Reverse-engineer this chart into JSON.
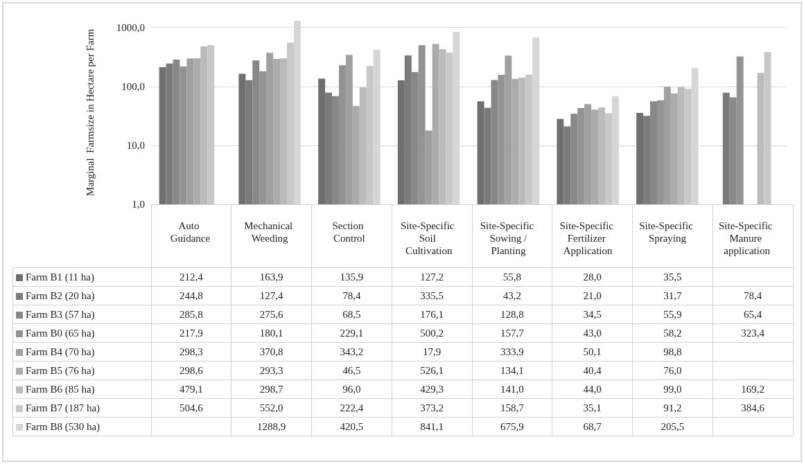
{
  "chart_data": {
    "type": "bar",
    "ylabel": "Marginal  Farmsize in Hectare per Farm",
    "categories": [
      "Auto Guidance",
      "Mechanical Weeding",
      "Section Control",
      "Site-Specific Soil Cultivation",
      "Site-Specific Sowing /Planting",
      "Site-Specific Fertilizer Application",
      "Site-Specific Spraying",
      "Site-Specific Manure application"
    ],
    "series": [
      {
        "name": "Farm B1 (11 ha)",
        "color": "#6f6f6f",
        "values": [
          212.4,
          163.9,
          135.9,
          127.2,
          55.8,
          28.0,
          35.5,
          null
        ],
        "value_labels": [
          "212,4",
          "163,9",
          "135,9",
          "127,2",
          "55,8",
          "28,0",
          "35,5",
          null
        ]
      },
      {
        "name": "Farm B2 (20 ha)",
        "color": "#7b7b7b",
        "values": [
          244.8,
          127.4,
          78.4,
          335.5,
          43.2,
          21.0,
          31.7,
          78.4
        ],
        "value_labels": [
          "244,8",
          "127,4",
          "78,4",
          "335,5",
          "43,2",
          "21,0",
          "31,7",
          "78,4"
        ]
      },
      {
        "name": "Farm B3 (57 ha)",
        "color": "#888888",
        "values": [
          285.8,
          275.6,
          68.5,
          176.1,
          128.8,
          34.5,
          55.9,
          65.4
        ],
        "value_labels": [
          "285,8",
          "275,6",
          "68,5",
          "176,1",
          "128,8",
          "34,5",
          "55,9",
          "65,4"
        ]
      },
      {
        "name": "Farm B0 (65 ha)",
        "color": "#939393",
        "values": [
          217.9,
          180.1,
          229.1,
          500.2,
          157.7,
          43.0,
          58.2,
          323.4
        ],
        "value_labels": [
          "217,9",
          "180,1",
          "229,1",
          "500,2",
          "157,7",
          "43,0",
          "58,2",
          "323,4"
        ]
      },
      {
        "name": "Farm B4 (70 ha)",
        "color": "#a0a0a0",
        "values": [
          298.3,
          370.8,
          343.2,
          17.9,
          333.9,
          50.1,
          98.8,
          null
        ],
        "value_labels": [
          "298,3",
          "370,8",
          "343,2",
          "17,9",
          "333,9",
          "50,1",
          "98,8",
          null
        ]
      },
      {
        "name": "Farm B5 (76 ha)",
        "color": "#ababab",
        "values": [
          298.6,
          293.3,
          46.5,
          526.1,
          134.1,
          40.4,
          76.0,
          null
        ],
        "value_labels": [
          "298,6",
          "293,3",
          "46,5",
          "526,1",
          "134,1",
          "40,4",
          "76,0",
          null
        ]
      },
      {
        "name": "Farm B6 (85 ha)",
        "color": "#bbbbbb",
        "values": [
          479.1,
          298.7,
          96.0,
          429.3,
          141.0,
          44.0,
          99.0,
          169.2
        ],
        "value_labels": [
          "479,1",
          "298,7",
          "96,0",
          "429,3",
          "141,0",
          "44,0",
          "99,0",
          "169,2"
        ]
      },
      {
        "name": "Farm B7 (187 ha)",
        "color": "#c8c8c8",
        "values": [
          504.6,
          552.0,
          222.4,
          373.2,
          158.7,
          35.1,
          91.2,
          384.6
        ],
        "value_labels": [
          "504,6",
          "552,0",
          "222,4",
          "373,2",
          "158,7",
          "35,1",
          "91,2",
          "384,6"
        ]
      },
      {
        "name": "Farm B8 (530 ha)",
        "color": "#d6d6d6",
        "values": [
          null,
          1288.9,
          420.5,
          841.1,
          675.9,
          68.7,
          205.5,
          null
        ],
        "value_labels": [
          null,
          "1288,9",
          "420,5",
          "841,1",
          "675,9",
          "68,7",
          "205,5",
          null
        ]
      }
    ],
    "log": true,
    "ylim": [
      1,
      1300
    ],
    "yticks": [
      {
        "value": 1,
        "label": "1,0"
      },
      {
        "value": 10,
        "label": "10,0"
      },
      {
        "value": 100,
        "label": "100,0"
      },
      {
        "value": 1000,
        "label": "1000,0"
      }
    ],
    "grid": "y",
    "legend": "bottom"
  }
}
